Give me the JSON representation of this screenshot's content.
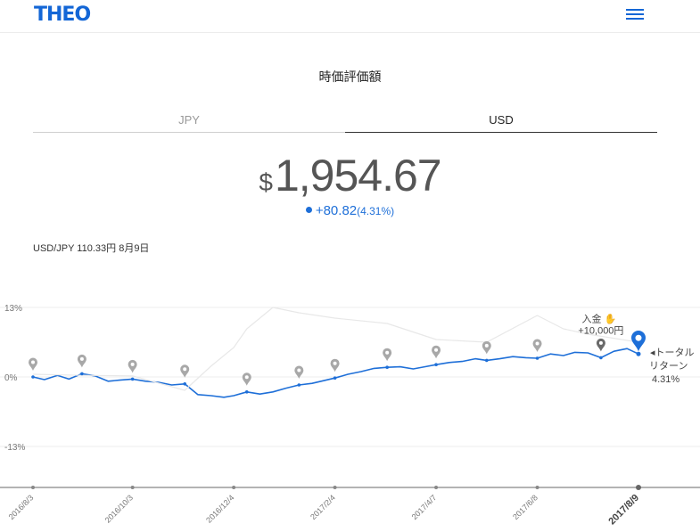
{
  "header": {
    "logo": "THEO",
    "menu_icon": "hamburger-menu-icon",
    "accent": "#1366d6"
  },
  "title": "時価評価額",
  "tabs": [
    {
      "label": "JPY",
      "active": false
    },
    {
      "label": "USD",
      "active": true
    }
  ],
  "value": {
    "currency": "$",
    "amount": "1,954.67"
  },
  "change": {
    "amount": "+80.82",
    "percent": "(4.31%)",
    "color": "#1e6fd8"
  },
  "fx_note": "USD/JPY 110.33円 8月9日",
  "chart_data": {
    "type": "line",
    "y_ticks": [
      "13%",
      "0%",
      "-13%"
    ],
    "ylim": [
      -20,
      13
    ],
    "x_ticks": [
      "2016/8/3",
      "2016/10/3",
      "2016/12/4",
      "2017/2/4",
      "2017/4/7",
      "2017/6/8",
      "2017/8/9"
    ],
    "series": [
      {
        "key": "portfolio",
        "color": "#1e6fd8",
        "x": [
          "2016/8/3",
          "2016/8/10",
          "2016/8/18",
          "2016/8/25",
          "2016/9/2",
          "2016/9/10",
          "2016/9/18",
          "2016/9/25",
          "2016/10/3",
          "2016/10/11",
          "2016/10/19",
          "2016/10/27",
          "2016/11/4",
          "2016/11/12",
          "2016/11/20",
          "2016/11/28",
          "2016/12/4",
          "2016/12/12",
          "2016/12/20",
          "2016/12/28",
          "2017/1/5",
          "2017/1/13",
          "2017/1/21",
          "2017/1/28",
          "2017/2/4",
          "2017/2/12",
          "2017/2/20",
          "2017/2/28",
          "2017/3/8",
          "2017/3/16",
          "2017/3/24",
          "2017/3/31",
          "2017/4/7",
          "2017/4/15",
          "2017/4/23",
          "2017/5/1",
          "2017/5/8",
          "2017/5/16",
          "2017/5/24",
          "2017/6/1",
          "2017/6/8",
          "2017/6/16",
          "2017/6/24",
          "2017/7/1",
          "2017/7/9",
          "2017/7/17",
          "2017/7/25",
          "2017/8/2",
          "2017/8/9"
        ],
        "values": [
          0,
          -0.5,
          0.3,
          -0.4,
          0.6,
          0.2,
          -0.8,
          -0.6,
          -0.4,
          -0.8,
          -1.0,
          -1.5,
          -1.3,
          -3.3,
          -3.5,
          -3.8,
          -3.5,
          -2.8,
          -3.2,
          -2.8,
          -2.1,
          -1.5,
          -1.2,
          -0.7,
          -0.2,
          0.5,
          1.0,
          1.6,
          1.8,
          1.9,
          1.5,
          1.9,
          2.3,
          2.7,
          2.9,
          3.4,
          3.1,
          3.4,
          3.8,
          3.6,
          3.5,
          4.3,
          4.0,
          4.6,
          4.5,
          3.6,
          4.8,
          5.3,
          4.3
        ]
      },
      {
        "key": "benchmark",
        "color": "#e8e8e8",
        "x": [
          "2016/8/3",
          "2016/9/2",
          "2016/10/3",
          "2016/11/4",
          "2016/11/20",
          "2016/12/4",
          "2016/12/12",
          "2016/12/28",
          "2017/1/13",
          "2017/2/4",
          "2017/3/8",
          "2017/4/7",
          "2017/5/8",
          "2017/6/8",
          "2017/6/24",
          "2017/7/9",
          "2017/8/9"
        ],
        "values": [
          0.5,
          0.3,
          0.2,
          -2.5,
          2.0,
          5.5,
          9.0,
          13.0,
          12.0,
          11.0,
          10.0,
          7.0,
          6.5,
          11.5,
          9.0,
          8.0,
          6.5
        ]
      }
    ],
    "pins": [
      "2016/8/3",
      "2016/9/2",
      "2016/10/3",
      "2016/11/4",
      "2016/12/12",
      "2017/1/13",
      "2017/2/4",
      "2017/3/8",
      "2017/4/7",
      "2017/5/8",
      "2017/6/8"
    ],
    "deposit": {
      "label": "入金",
      "icon": "hand-icon",
      "amount": "+10,000円",
      "x": "2017/7/17"
    },
    "current_label": {
      "line1": "トータル",
      "line2": "リターン",
      "value": "4.31%"
    }
  }
}
